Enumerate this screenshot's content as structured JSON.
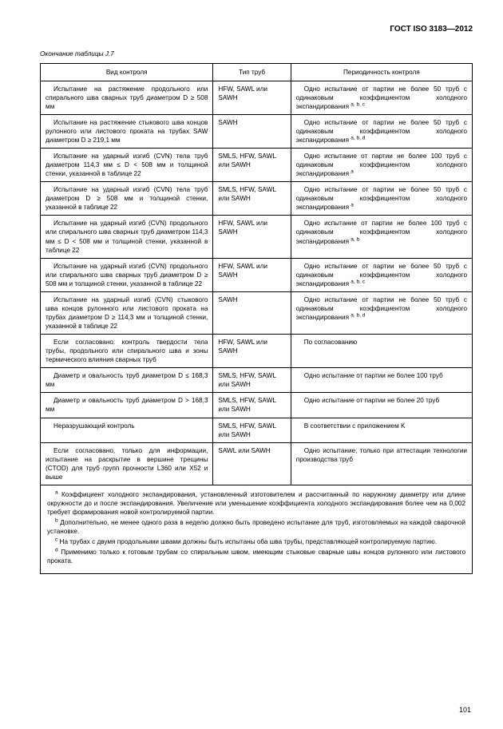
{
  "header": "ГОСТ ISO 3183—2012",
  "caption": "Окончание таблицы J.7",
  "columns": [
    "Вид контроля",
    "Тип труб",
    "Периодичность контроля"
  ],
  "rows": [
    {
      "c1": "Испытание на растяжение продольного или спирального шва сварных труб диаметром  D ≥ 508 мм",
      "c2": "HFW, SAWL или SAWH",
      "c3": "Одно испытание от партии не более 50 труб с одинаковым коэффициентом холодного экспандирования ",
      "c3sup": "a, b, c"
    },
    {
      "c1": "Испытание на растяжение стыкового шва концов рулонного или листового проката на трубах SAW диаметром D ≥ 219,1 мм",
      "c2": "SAWH",
      "c3": "Одно испытание от партии не более 50 труб с одинаковым коэффициентом холодного экспандирования ",
      "c3sup": "a, b, d"
    },
    {
      "c1": "Испытание на ударный изгиб (CVN) тела труб диаметром 114,3 мм ≤ D < 508 мм и толщиной стенки, указанной в таблице 22",
      "c2": "SMLS, HFW, SAWL или SAWH",
      "c3": "Одно испытание от партии не более 100 труб с одинаковым коэффициентом холодного экспандирования ",
      "c3sup": "a"
    },
    {
      "c1": "Испытание на ударный изгиб (CVN) тела труб диаметром D ≥ 508 мм и толщиной стенки, указанной в таблице 22",
      "c2": "SMLS, HFW, SAWL или SAWH",
      "c3": "Одно испытание от партии не более 50 труб с одинаковым коэффициентом холодного экспандирования ",
      "c3sup": "a"
    },
    {
      "c1": "Испытание на ударный изгиб (CVN) продольного или спирального шва сварных труб диаметром 114,3 мм ≤ D < 508 мм и толщиной стенки, указанной в таблице 22",
      "c2": "HFW, SAWL или SAWH",
      "c3": "Одно испытание от партии не более 100 труб с одинаковым коэффициентом холодного экспандирования ",
      "c3sup": "a, b"
    },
    {
      "c1": "Испытание на ударный изгиб (CVN) продольного или спирального шва сварных труб диаметром  D ≥ 508 мм и толщиной стенки, указанной в таблице 22",
      "c2": "HFW, SAWL или SAWH",
      "c3": "Одно испытание от партии не более 50 труб с одинаковым коэффициентом холодного экспандирования ",
      "c3sup": "a, b, c"
    },
    {
      "c1": "Испытание на ударный изгиб (CVN) стыкового шва концов рулонного или листового проката на трубах диаметром D ≥ 114,3 мм и толщиной стенки, указанной в таблице 22",
      "c2": "SAWH",
      "c3": "Одно испытание от партии не более 50 труб с одинаковым коэффициентом холодного экспандирования ",
      "c3sup": "a, b, d"
    },
    {
      "c1": "Если согласовано: контроль твердости тела трубы, продольного или спирального шва и зоны термического влияния сварных труб",
      "c2": "HFW, SAWL или SAWH",
      "c3": "По согласованию",
      "c3sup": ""
    },
    {
      "c1": "Диаметр и овальность труб диаметром D ≤ 168,3 мм",
      "c2": "SMLS, HFW, SAWL или SAWH",
      "c3": "Одно испытание от партии не более 100 труб",
      "c3sup": ""
    },
    {
      "c1": "Диаметр и овальность труб диаметром D > 168,3 мм",
      "c2": "SMLS, HFW, SAWL или SAWH",
      "c3": "Одно испытание от партии не более 20 труб",
      "c3sup": ""
    },
    {
      "c1": "Неразрушающий контроль",
      "c2": "SMLS, HFW, SAWL или SAWH",
      "c3": "В соответствии с приложением K",
      "c3sup": ""
    },
    {
      "c1": "Если согласовано, только для информации, испытание на раскрытие в вершине трещины (CTOD) для труб групп прочности L360 или X52 и выше",
      "c2": "SAWL или SAWH",
      "c3": "Одно испытание, только при аттестации технологии производства труб",
      "c3sup": ""
    }
  ],
  "footnotes": [
    {
      "sup": "a",
      "text": " Коэффициент холодного экспандирования, установленный изготовителем и рассчитанный по наружному диаметру или длине окружности до и после экспандирования. Увеличение или уменьшение коэффициента холодного экспандирования более чем на 0,002 требует формирования новой контролируемой партии."
    },
    {
      "sup": "b",
      "text": " Дополнительно, не менее одного раза в неделю должно быть проведено испытание для труб, изготовляемых на каждой сварочной установке."
    },
    {
      "sup": "c",
      "text": " На трубах с двумя продольными швами должны быть испытаны оба шва трубы, представляющей контролируемую партию."
    },
    {
      "sup": "d",
      "text": " Применимо только к готовым трубам со спиральным швом, имеющим стыковые сварные швы концов рулонного или листового проката."
    }
  ],
  "pageNumber": "101"
}
